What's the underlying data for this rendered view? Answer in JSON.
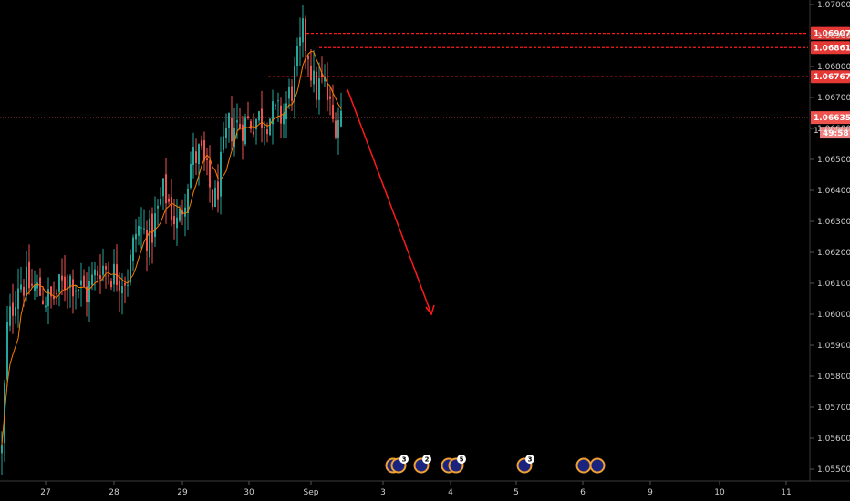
{
  "chart_data": {
    "type": "candlestick",
    "y_axis": {
      "min": 1.055,
      "max": 1.07,
      "ticks": [
        "1.07000",
        "1.06900",
        "1.06800",
        "1.06700",
        "1.06600",
        "1.06500",
        "1.06400",
        "1.06300",
        "1.06200",
        "1.06100",
        "1.06000",
        "1.05900",
        "1.05800",
        "1.05700",
        "1.05600",
        "1.05500"
      ]
    },
    "x_axis": {
      "labels": [
        "27",
        "28",
        "29",
        "30",
        "Sep",
        "3",
        "4",
        "5",
        "6",
        "9",
        "10",
        "11"
      ]
    },
    "current_price": {
      "value": "1.06635",
      "countdown": "49:58",
      "partial_label": "1"
    },
    "resistance_levels": [
      {
        "label": "1.06907",
        "value": 1.06907
      },
      {
        "label": "1.06861",
        "value": 1.06861
      },
      {
        "label": "1.06767",
        "value": 1.06767
      }
    ],
    "projection": {
      "from_price": 1.0672,
      "to_price": 1.06,
      "direction": "down"
    },
    "event_markers": [
      {
        "count": "3"
      },
      {
        "count": "2"
      },
      {
        "count": "5"
      },
      {
        "count": "3"
      },
      {
        "count": ""
      }
    ],
    "colors": {
      "up": "#26a69a",
      "down": "#ef5350",
      "ma": "#f57c00",
      "level": "#ff1a1a",
      "current": "#ef5350"
    }
  }
}
